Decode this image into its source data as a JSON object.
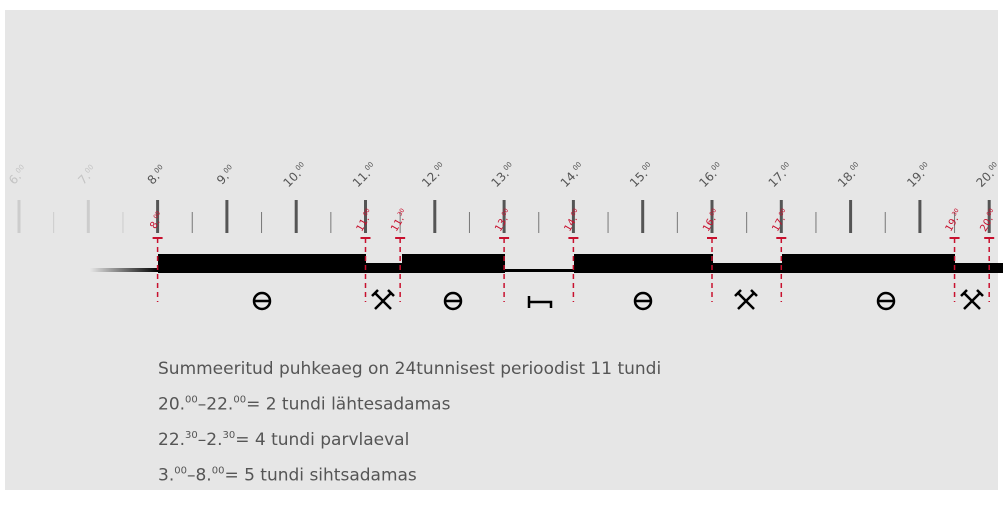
{
  "scale": {
    "labels": [
      {
        "hour": "6.",
        "min": "00"
      },
      {
        "hour": "7.",
        "min": "00"
      },
      {
        "hour": "8.",
        "min": "00"
      },
      {
        "hour": "9.",
        "min": "00"
      },
      {
        "hour": "10.",
        "min": "00"
      },
      {
        "hour": "11.",
        "min": "00"
      },
      {
        "hour": "12.",
        "min": "00"
      },
      {
        "hour": "13.",
        "min": "00"
      },
      {
        "hour": "14.",
        "min": "00"
      },
      {
        "hour": "15.",
        "min": "00"
      },
      {
        "hour": "16.",
        "min": "00"
      },
      {
        "hour": "17.",
        "min": "00"
      },
      {
        "hour": "18.",
        "min": "00"
      },
      {
        "hour": "19.",
        "min": "00"
      },
      {
        "hour": "20.",
        "min": "00"
      }
    ]
  },
  "markers": [
    {
      "hour": "8.",
      "min": "00"
    },
    {
      "hour": "11.",
      "min": "00"
    },
    {
      "hour": "11.",
      "min": "30"
    },
    {
      "hour": "13.",
      "min": "00"
    },
    {
      "hour": "14.",
      "min": "00"
    },
    {
      "hour": "16.",
      "min": "00"
    },
    {
      "hour": "17.",
      "min": "00"
    },
    {
      "hour": "19.",
      "min": "30"
    },
    {
      "hour": "20.",
      "min": "00"
    }
  ],
  "notes": {
    "lines": [
      [
        "Summeeritud puhkeaeg on 24tunnisest perioodist 11 tundi"
      ],
      [
        "20.",
        "00",
        "–22.",
        "00",
        "= 2 tundi lähtesadamas"
      ],
      [
        "22.",
        "30",
        "–2.",
        "30",
        "= 4 tundi parvlaeval"
      ],
      [
        "3.",
        "00",
        "–8.",
        "00",
        "= 5 tundi sihtsadamas"
      ]
    ]
  }
}
